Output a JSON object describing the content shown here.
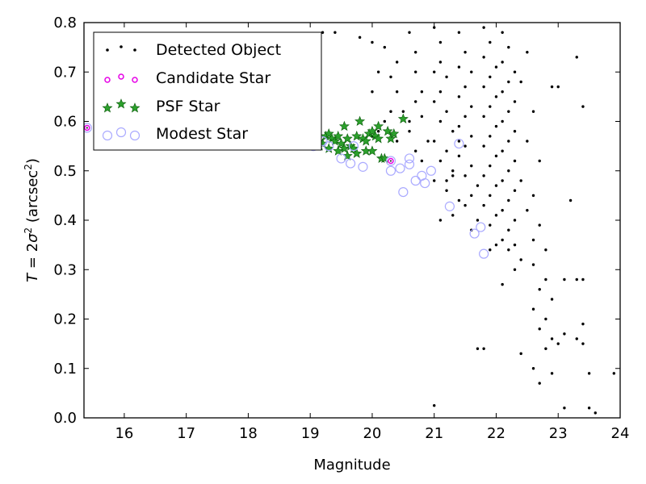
{
  "chart_data": {
    "type": "scatter",
    "xlabel": "Magnitude",
    "ylabel": {
      "T": "T",
      "eq": " = 2",
      "sigma": "σ",
      "sq": "2",
      "unit": " (arcsec",
      "sup": "2",
      "close": ")"
    },
    "xlim": [
      15.35,
      24.0
    ],
    "ylim": [
      0.0,
      0.8
    ],
    "xticks": [
      16,
      17,
      18,
      19,
      20,
      21,
      22,
      23,
      24
    ],
    "yticks": [
      0.0,
      0.1,
      0.2,
      0.3,
      0.4,
      0.5,
      0.6,
      0.7,
      0.8
    ],
    "grid": false,
    "legend_placement": "upper-left",
    "series": [
      {
        "name": "Detected Object",
        "marker": "dot",
        "color": "#000000",
        "points": [
          [
            19.2,
            0.78
          ],
          [
            19.4,
            0.78
          ],
          [
            19.8,
            0.77
          ],
          [
            20.0,
            0.76
          ],
          [
            20.2,
            0.75
          ],
          [
            20.4,
            0.72
          ],
          [
            20.1,
            0.7
          ],
          [
            20.3,
            0.69
          ],
          [
            20.0,
            0.66
          ],
          [
            20.4,
            0.66
          ],
          [
            20.5,
            0.62
          ],
          [
            20.3,
            0.62
          ],
          [
            20.2,
            0.6
          ],
          [
            20.1,
            0.58
          ],
          [
            20.0,
            0.57
          ],
          [
            20.6,
            0.58
          ],
          [
            20.4,
            0.56
          ],
          [
            20.6,
            0.78
          ],
          [
            20.7,
            0.74
          ],
          [
            20.7,
            0.7
          ],
          [
            20.8,
            0.66
          ],
          [
            20.7,
            0.64
          ],
          [
            20.8,
            0.61
          ],
          [
            20.6,
            0.6
          ],
          [
            20.9,
            0.56
          ],
          [
            20.7,
            0.54
          ],
          [
            20.8,
            0.52
          ],
          [
            21.0,
            0.79
          ],
          [
            21.1,
            0.76
          ],
          [
            21.1,
            0.72
          ],
          [
            21.0,
            0.7
          ],
          [
            21.2,
            0.69
          ],
          [
            21.1,
            0.66
          ],
          [
            21.0,
            0.64
          ],
          [
            21.2,
            0.62
          ],
          [
            21.1,
            0.6
          ],
          [
            21.3,
            0.58
          ],
          [
            21.0,
            0.56
          ],
          [
            21.2,
            0.54
          ],
          [
            21.1,
            0.52
          ],
          [
            21.3,
            0.5
          ],
          [
            21.2,
            0.48
          ],
          [
            21.0,
            0.48
          ],
          [
            21.2,
            0.46
          ],
          [
            21.4,
            0.44
          ],
          [
            21.3,
            0.41
          ],
          [
            21.1,
            0.4
          ],
          [
            21.4,
            0.78
          ],
          [
            21.5,
            0.74
          ],
          [
            21.4,
            0.71
          ],
          [
            21.6,
            0.7
          ],
          [
            21.5,
            0.67
          ],
          [
            21.4,
            0.65
          ],
          [
            21.6,
            0.63
          ],
          [
            21.5,
            0.61
          ],
          [
            21.4,
            0.59
          ],
          [
            21.6,
            0.57
          ],
          [
            21.5,
            0.55
          ],
          [
            21.4,
            0.53
          ],
          [
            21.6,
            0.51
          ],
          [
            21.5,
            0.49
          ],
          [
            21.7,
            0.47
          ],
          [
            21.6,
            0.45
          ],
          [
            21.5,
            0.43
          ],
          [
            21.7,
            0.4
          ],
          [
            21.6,
            0.38
          ],
          [
            21.8,
            0.79
          ],
          [
            21.9,
            0.76
          ],
          [
            21.8,
            0.73
          ],
          [
            22.0,
            0.71
          ],
          [
            21.9,
            0.69
          ],
          [
            21.8,
            0.67
          ],
          [
            22.0,
            0.65
          ],
          [
            21.9,
            0.63
          ],
          [
            21.8,
            0.61
          ],
          [
            22.0,
            0.59
          ],
          [
            21.9,
            0.57
          ],
          [
            21.8,
            0.55
          ],
          [
            22.0,
            0.53
          ],
          [
            21.9,
            0.51
          ],
          [
            21.8,
            0.49
          ],
          [
            22.0,
            0.47
          ],
          [
            21.9,
            0.45
          ],
          [
            21.8,
            0.43
          ],
          [
            22.0,
            0.41
          ],
          [
            21.9,
            0.39
          ],
          [
            22.1,
            0.78
          ],
          [
            22.2,
            0.75
          ],
          [
            22.1,
            0.72
          ],
          [
            22.3,
            0.7
          ],
          [
            22.2,
            0.68
          ],
          [
            22.1,
            0.66
          ],
          [
            22.3,
            0.64
          ],
          [
            22.2,
            0.62
          ],
          [
            22.1,
            0.6
          ],
          [
            22.3,
            0.58
          ],
          [
            22.2,
            0.56
          ],
          [
            22.1,
            0.54
          ],
          [
            22.3,
            0.52
          ],
          [
            22.2,
            0.5
          ],
          [
            22.1,
            0.48
          ],
          [
            22.3,
            0.46
          ],
          [
            22.2,
            0.44
          ],
          [
            22.1,
            0.42
          ],
          [
            22.3,
            0.4
          ],
          [
            22.2,
            0.38
          ],
          [
            22.1,
            0.36
          ],
          [
            22.2,
            0.34
          ],
          [
            22.0,
            0.35
          ],
          [
            22.4,
            0.32
          ],
          [
            22.3,
            0.3
          ],
          [
            22.5,
            0.74
          ],
          [
            22.4,
            0.68
          ],
          [
            22.6,
            0.62
          ],
          [
            22.5,
            0.56
          ],
          [
            22.7,
            0.52
          ],
          [
            22.4,
            0.48
          ],
          [
            22.6,
            0.45
          ],
          [
            22.5,
            0.42
          ],
          [
            22.7,
            0.39
          ],
          [
            22.6,
            0.36
          ],
          [
            22.8,
            0.34
          ],
          [
            22.6,
            0.31
          ],
          [
            22.8,
            0.28
          ],
          [
            22.7,
            0.26
          ],
          [
            22.9,
            0.24
          ],
          [
            22.6,
            0.22
          ],
          [
            22.8,
            0.2
          ],
          [
            22.7,
            0.18
          ],
          [
            22.9,
            0.16
          ],
          [
            22.8,
            0.14
          ],
          [
            22.9,
            0.67
          ],
          [
            23.0,
            0.67
          ],
          [
            23.2,
            0.44
          ],
          [
            23.1,
            0.28
          ],
          [
            23.3,
            0.28
          ],
          [
            23.4,
            0.28
          ],
          [
            23.1,
            0.17
          ],
          [
            23.0,
            0.15
          ],
          [
            23.4,
            0.19
          ],
          [
            23.4,
            0.63
          ],
          [
            23.3,
            0.73
          ],
          [
            21.7,
            0.14
          ],
          [
            21.8,
            0.14
          ],
          [
            22.1,
            0.27
          ],
          [
            22.9,
            0.09
          ],
          [
            22.6,
            0.1
          ],
          [
            22.7,
            0.07
          ],
          [
            23.1,
            0.02
          ],
          [
            23.5,
            0.09
          ],
          [
            23.5,
            0.02
          ],
          [
            23.6,
            0.01
          ],
          [
            23.9,
            0.09
          ],
          [
            23.4,
            0.15
          ],
          [
            23.3,
            0.16
          ],
          [
            21.0,
            0.025
          ],
          [
            22.4,
            0.13
          ],
          [
            22.3,
            0.35
          ],
          [
            21.9,
            0.34
          ],
          [
            21.4,
            0.56
          ],
          [
            21.3,
            0.49
          ]
        ]
      },
      {
        "name": "Candidate Star",
        "marker": "small-circle",
        "color": "#e600e6",
        "points": [
          [
            15.4,
            0.587
          ],
          [
            20.3,
            0.52
          ]
        ]
      },
      {
        "name": "PSF Star",
        "marker": "star",
        "color": "#2ca02c",
        "points": [
          [
            19.05,
            0.55
          ],
          [
            19.1,
            0.56
          ],
          [
            19.15,
            0.55
          ],
          [
            19.2,
            0.555
          ],
          [
            19.25,
            0.57
          ],
          [
            19.3,
            0.575
          ],
          [
            19.35,
            0.565
          ],
          [
            19.4,
            0.56
          ],
          [
            19.45,
            0.57
          ],
          [
            19.5,
            0.555
          ],
          [
            19.55,
            0.59
          ],
          [
            19.6,
            0.565
          ],
          [
            19.65,
            0.55
          ],
          [
            19.7,
            0.545
          ],
          [
            19.75,
            0.57
          ],
          [
            19.8,
            0.6
          ],
          [
            19.85,
            0.565
          ],
          [
            19.9,
            0.54
          ],
          [
            19.95,
            0.575
          ],
          [
            20.0,
            0.58
          ],
          [
            20.05,
            0.57
          ],
          [
            20.1,
            0.565
          ],
          [
            20.15,
            0.525
          ],
          [
            20.2,
            0.525
          ],
          [
            20.25,
            0.58
          ],
          [
            20.3,
            0.565
          ],
          [
            20.35,
            0.575
          ],
          [
            20.5,
            0.605
          ],
          [
            19.3,
            0.545
          ],
          [
            19.55,
            0.545
          ],
          [
            19.75,
            0.535
          ],
          [
            20.0,
            0.54
          ],
          [
            19.45,
            0.54
          ],
          [
            19.9,
            0.56
          ],
          [
            19.6,
            0.53
          ],
          [
            20.1,
            0.59
          ]
        ]
      },
      {
        "name": "Modest Star",
        "marker": "circle",
        "color": "#aaaaff",
        "points": [
          [
            19.05,
            0.55
          ],
          [
            19.3,
            0.55
          ],
          [
            19.5,
            0.525
          ],
          [
            19.65,
            0.515
          ],
          [
            19.85,
            0.508
          ],
          [
            20.3,
            0.5
          ],
          [
            20.45,
            0.505
          ],
          [
            20.5,
            0.457
          ],
          [
            20.6,
            0.513
          ],
          [
            20.6,
            0.525
          ],
          [
            20.7,
            0.48
          ],
          [
            20.8,
            0.49
          ],
          [
            20.85,
            0.475
          ],
          [
            20.95,
            0.5
          ],
          [
            21.25,
            0.428
          ],
          [
            21.65,
            0.373
          ],
          [
            21.75,
            0.386
          ],
          [
            21.8,
            0.332
          ],
          [
            19.2,
            0.56
          ],
          [
            19.7,
            0.55
          ],
          [
            20.3,
            0.52
          ],
          [
            21.4,
            0.555
          ],
          [
            15.4,
            0.587
          ]
        ]
      }
    ]
  },
  "legend": {
    "entries": [
      {
        "label": "Detected Object"
      },
      {
        "label": "Candidate Star"
      },
      {
        "label": "PSF Star"
      },
      {
        "label": "Modest Star"
      }
    ]
  }
}
